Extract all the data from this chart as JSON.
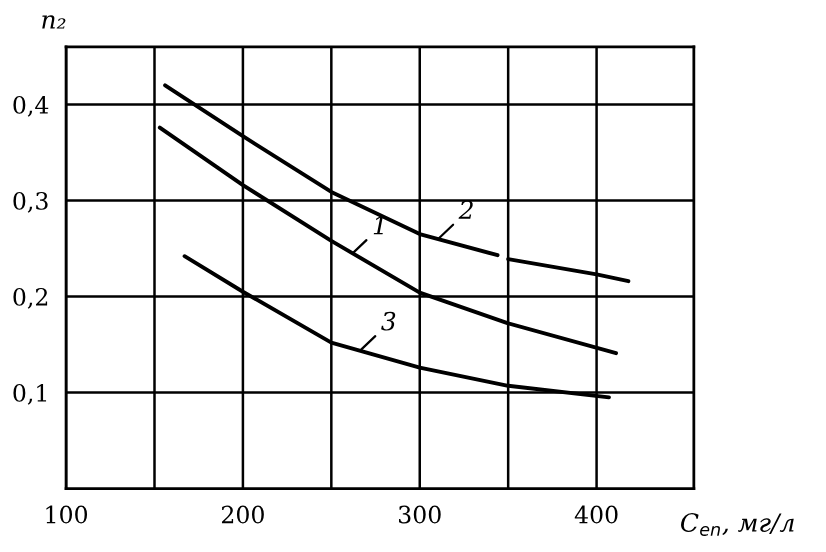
{
  "chart_data": {
    "type": "line",
    "xlabel": "C$_{en}$, мг/л",
    "ylabel": "n₂",
    "xlim": [
      100,
      455
    ],
    "ylim": [
      0,
      0.46
    ],
    "xticks": [
      100,
      {
        "value": 150,
        "label": null
      },
      200,
      {
        "value": 250,
        "label": null
      },
      300,
      {
        "value": 350,
        "label": null
      },
      400
    ],
    "yticks": [
      {
        "value": 0.1,
        "label": "0,1"
      },
      {
        "value": 0.2,
        "label": "0,2"
      },
      {
        "value": 0.3,
        "label": "0,3"
      },
      {
        "value": 0.4,
        "label": "0,4"
      }
    ],
    "grid": true,
    "marker": "none",
    "line_style": "solid",
    "series": [
      {
        "color": "#000000",
        "x": [
          153,
          200,
          250,
          300,
          350,
          411
        ],
        "values": [
          0.376,
          0.316,
          0.258,
          0.204,
          0.172,
          0.141
        ]
      },
      {
        "color": "#000000",
        "x": [
          156,
          200,
          250,
          300,
          344,
          347,
          350,
          400,
          418
        ],
        "values": [
          0.42,
          0.367,
          0.309,
          0.265,
          0.243,
          null,
          0.239,
          0.223,
          0.216
        ]
      },
      {
        "color": "#000000",
        "x": [
          167,
          200,
          250,
          300,
          350,
          407
        ],
        "values": [
          0.242,
          0.205,
          0.152,
          0.126,
          0.107,
          0.095
        ]
      }
    ],
    "annotations": [
      {
        "text": "1",
        "x": 262,
        "y": 0.245
      },
      {
        "text": "2",
        "x": 311,
        "y": 0.261
      },
      {
        "text": "3",
        "x": 267,
        "y": 0.145
      }
    ]
  }
}
